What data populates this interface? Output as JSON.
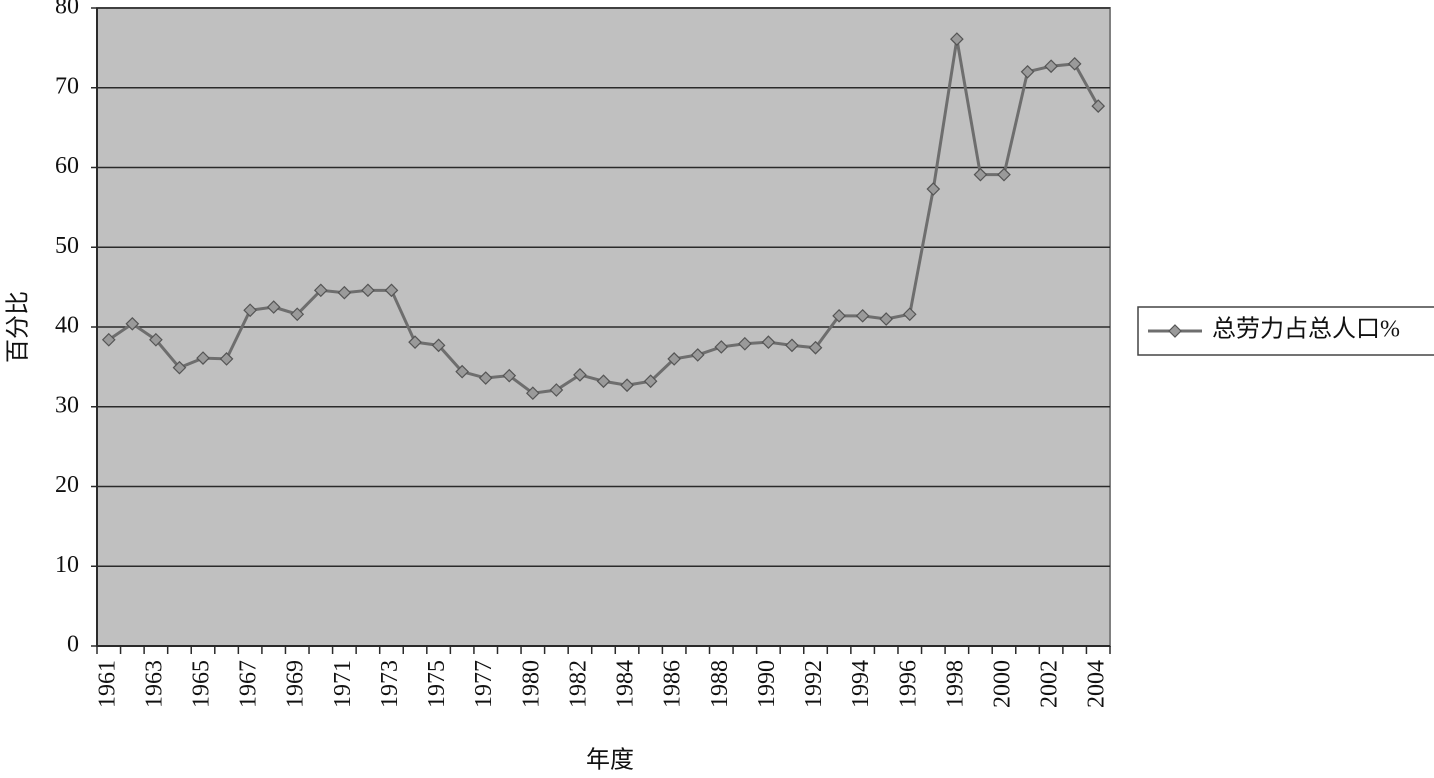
{
  "chart_data": {
    "type": "line",
    "xlabel": "年度",
    "ylabel": "百分比",
    "categories": [
      "1961",
      null,
      "1963",
      null,
      "1965",
      null,
      "1967",
      null,
      "1969",
      null,
      "1971",
      null,
      "1973",
      null,
      "1975",
      null,
      "1977",
      null,
      "1980",
      null,
      "1982",
      null,
      "1984",
      null,
      "1986",
      null,
      "1988",
      null,
      "1990",
      null,
      "1992",
      null,
      "1994",
      null,
      "1996",
      null,
      "1998",
      null,
      "2000",
      null,
      "2002",
      null,
      "2004"
    ],
    "series": [
      {
        "name": "总劳力占总人口%",
        "color": "#6e6e6e",
        "values": [
          38.4,
          40.4,
          38.4,
          34.9,
          36.1,
          36.0,
          42.1,
          42.5,
          41.6,
          44.6,
          44.3,
          44.6,
          44.6,
          38.1,
          37.7,
          34.4,
          33.6,
          33.9,
          31.7,
          32.1,
          34.0,
          33.2,
          32.7,
          33.2,
          36.0,
          36.5,
          37.5,
          37.9,
          38.1,
          37.7,
          37.4,
          41.4,
          41.4,
          41.0,
          41.6,
          57.3,
          76.1,
          59.1,
          59.1,
          72.0,
          72.7,
          73.0,
          67.7
        ]
      }
    ],
    "ylim": [
      0,
      80
    ],
    "yticks": [
      0,
      10,
      20,
      30,
      40,
      50,
      60,
      70,
      80
    ],
    "grid": true,
    "legend": "right",
    "plot_background": "#c0c0c0"
  }
}
